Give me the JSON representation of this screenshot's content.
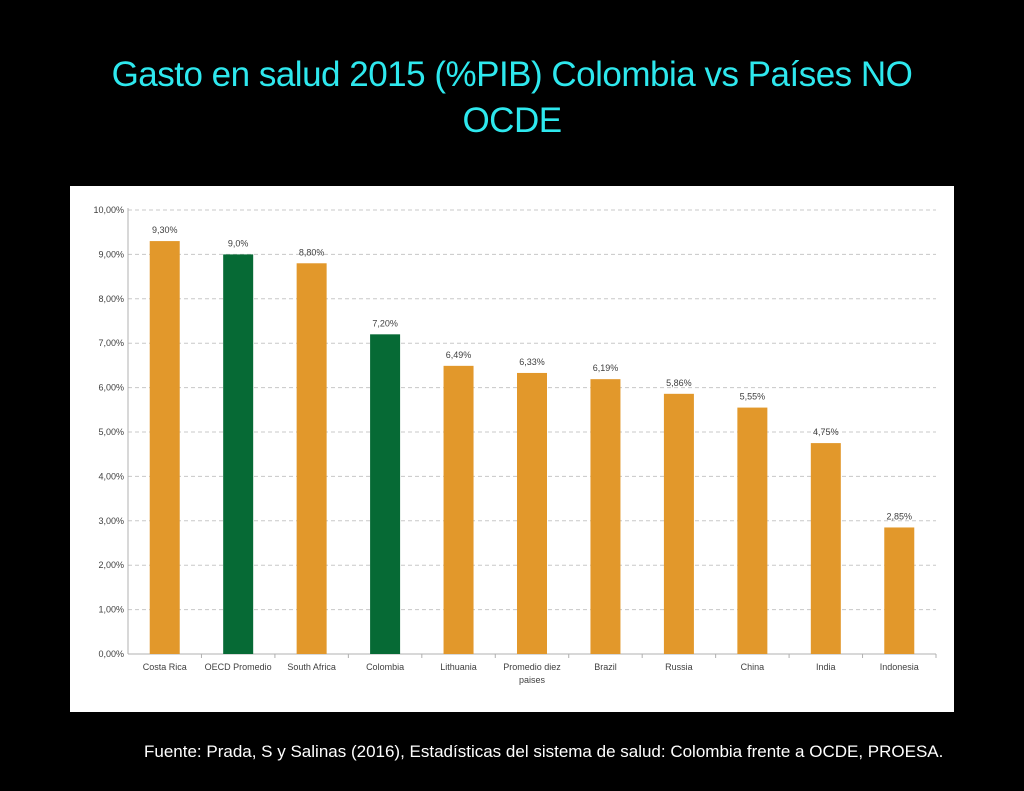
{
  "slide": {
    "title_line1": "Gasto en salud  2015 (%PIB) Colombia vs Países NO",
    "title_line2": "OCDE",
    "source": "Fuente: Prada, S y Salinas (2016), Estadísticas del sistema de salud: Colombia frente a OCDE, PROESA."
  },
  "chart_data": {
    "type": "bar",
    "title": "",
    "xlabel": "",
    "ylabel": "",
    "ylim": [
      0,
      10
    ],
    "yticks": [
      "0,00%",
      "1,00%",
      "2,00%",
      "3,00%",
      "4,00%",
      "5,00%",
      "6,00%",
      "7,00%",
      "8,00%",
      "9,00%",
      "10,00%"
    ],
    "grid": true,
    "categories": [
      [
        "Costa Rica"
      ],
      [
        "OECD Promedio"
      ],
      [
        "South Africa"
      ],
      [
        "Colombia"
      ],
      [
        "Lithuania"
      ],
      [
        "Promedio diez",
        "paises"
      ],
      [
        "Brazil"
      ],
      [
        "Russia"
      ],
      [
        "China"
      ],
      [
        "India"
      ],
      [
        "Indonesia"
      ]
    ],
    "values": [
      9.3,
      9.0,
      8.8,
      7.2,
      6.49,
      6.33,
      6.19,
      5.86,
      5.55,
      4.75,
      2.85
    ],
    "data_labels": [
      "9,30%",
      "9,0%",
      "8,80%",
      "7,20%",
      "6,49%",
      "6,33%",
      "6,19%",
      "5,86%",
      "5,55%",
      "4,75%",
      "2,85%"
    ],
    "bar_colors": [
      "#e2982b",
      "#066a35",
      "#e2982b",
      "#066a35",
      "#e2982b",
      "#e2982b",
      "#e2982b",
      "#e2982b",
      "#e2982b",
      "#e2982b",
      "#e2982b"
    ]
  }
}
